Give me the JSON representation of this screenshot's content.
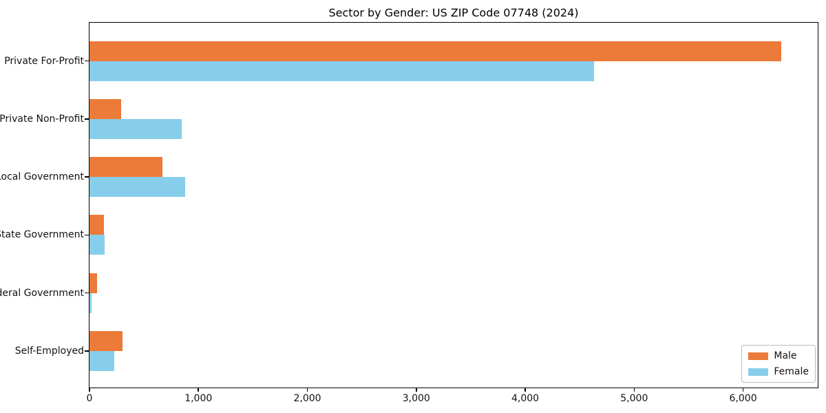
{
  "chart_data": {
    "type": "bar",
    "orientation": "horizontal",
    "title": "Sector by Gender: US ZIP Code 07748 (2024)",
    "categories": [
      "Private For-Profit",
      "Private Non-Profit",
      "Local Government",
      "State Government",
      "Federal Government",
      "Self-Employed"
    ],
    "series": [
      {
        "name": "Male",
        "color": "#EC7A38",
        "values": [
          6350,
          290,
          670,
          130,
          70,
          300
        ]
      },
      {
        "name": "Female",
        "color": "#87CEEB",
        "values": [
          4630,
          845,
          875,
          140,
          20,
          230
        ]
      }
    ],
    "xlabel": "",
    "ylabel": "",
    "xlim": [
      0,
      6685
    ],
    "x_ticks": [
      0,
      1000,
      2000,
      3000,
      4000,
      5000,
      6000
    ],
    "x_tick_labels": [
      "0",
      "1,000",
      "2,000",
      "3,000",
      "4,000",
      "5,000",
      "6,000"
    ],
    "grid": false,
    "legend": {
      "position": "lower right",
      "entries": [
        "Male",
        "Female"
      ]
    }
  }
}
